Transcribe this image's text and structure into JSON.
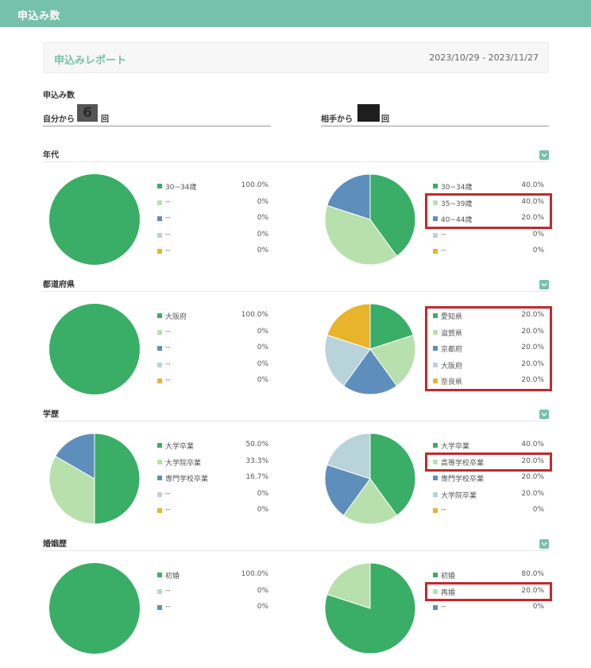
{
  "header": {
    "title": "申込み数"
  },
  "report": {
    "title": "申込みレポート",
    "date_range": "2023/10/29 - 2023/11/27"
  },
  "summary": {
    "label": "申込み数",
    "self_label": "自分から",
    "self_count": "6",
    "self_unit": "回",
    "partner_label": "相手から",
    "partner_count": "",
    "partner_unit": "回"
  },
  "colors": {
    "c1": "#3aae66",
    "c2": "#b8e0ad",
    "c3": "#5e8fbc",
    "c4": "#b8d3da",
    "c5": "#e8b42c",
    "accent": "#76c1aa",
    "highlight": "#c62828"
  },
  "categories": [
    {
      "title": "年代",
      "self": {
        "items": [
          {
            "label": "30~34歳",
            "value": "100.0%"
          },
          {
            "label": "--",
            "value": "0%"
          },
          {
            "label": "--",
            "value": "0%"
          },
          {
            "label": "--",
            "value": "0%"
          },
          {
            "label": "--",
            "value": "0%"
          }
        ]
      },
      "partner": {
        "items": [
          {
            "label": "30~34歳",
            "value": "40.0%"
          },
          {
            "label": "35~39歳",
            "value": "40.0%"
          },
          {
            "label": "40~44歳",
            "value": "20.0%"
          },
          {
            "label": "--",
            "value": "0%"
          },
          {
            "label": "--",
            "value": "0%"
          }
        ]
      }
    },
    {
      "title": "都道府県",
      "self": {
        "items": [
          {
            "label": "大阪府",
            "value": "100.0%"
          },
          {
            "label": "--",
            "value": "0%"
          },
          {
            "label": "--",
            "value": "0%"
          },
          {
            "label": "--",
            "value": "0%"
          },
          {
            "label": "--",
            "value": "0%"
          }
        ]
      },
      "partner": {
        "items": [
          {
            "label": "愛知県",
            "value": "20.0%"
          },
          {
            "label": "滋賀県",
            "value": "20.0%"
          },
          {
            "label": "京都府",
            "value": "20.0%"
          },
          {
            "label": "大阪府",
            "value": "20.0%"
          },
          {
            "label": "奈良県",
            "value": "20.0%"
          }
        ]
      }
    },
    {
      "title": "学歴",
      "self": {
        "items": [
          {
            "label": "大学卒業",
            "value": "50.0%"
          },
          {
            "label": "大学院卒業",
            "value": "33.3%"
          },
          {
            "label": "専門学校卒業",
            "value": "16.7%"
          },
          {
            "label": "--",
            "value": "0%"
          },
          {
            "label": "--",
            "value": "0%"
          }
        ]
      },
      "partner": {
        "items": [
          {
            "label": "大学卒業",
            "value": "40.0%"
          },
          {
            "label": "高等学校卒業",
            "value": "20.0%"
          },
          {
            "label": "専門学校卒業",
            "value": "20.0%"
          },
          {
            "label": "大学院卒業",
            "value": "20.0%"
          },
          {
            "label": "--",
            "value": "0%"
          }
        ]
      }
    },
    {
      "title": "婚姻歴",
      "self": {
        "items": [
          {
            "label": "初婚",
            "value": "100.0%"
          },
          {
            "label": "--",
            "value": "0%"
          },
          {
            "label": "--",
            "value": "0%"
          }
        ]
      },
      "partner": {
        "items": [
          {
            "label": "初婚",
            "value": "80.0%"
          },
          {
            "label": "再婚",
            "value": "20.0%"
          },
          {
            "label": "--",
            "value": "0%"
          }
        ]
      }
    }
  ],
  "chart_data": [
    {
      "type": "pie",
      "title": "年代 (自分から)",
      "labels": [
        "30~34歳"
      ],
      "values": [
        100.0
      ]
    },
    {
      "type": "pie",
      "title": "年代 (相手から)",
      "labels": [
        "30~34歳",
        "35~39歳",
        "40~44歳"
      ],
      "values": [
        40.0,
        40.0,
        20.0
      ]
    },
    {
      "type": "pie",
      "title": "都道府県 (自分から)",
      "labels": [
        "大阪府"
      ],
      "values": [
        100.0
      ]
    },
    {
      "type": "pie",
      "title": "都道府県 (相手から)",
      "labels": [
        "愛知県",
        "滋賀県",
        "京都府",
        "大阪府",
        "奈良県"
      ],
      "values": [
        20.0,
        20.0,
        20.0,
        20.0,
        20.0
      ]
    },
    {
      "type": "pie",
      "title": "学歴 (自分から)",
      "labels": [
        "大学卒業",
        "大学院卒業",
        "専門学校卒業"
      ],
      "values": [
        50.0,
        33.3,
        16.7
      ]
    },
    {
      "type": "pie",
      "title": "学歴 (相手から)",
      "labels": [
        "大学卒業",
        "高等学校卒業",
        "専門学校卒業",
        "大学院卒業"
      ],
      "values": [
        40.0,
        20.0,
        20.0,
        20.0
      ]
    },
    {
      "type": "pie",
      "title": "婚姻歴 (自分から)",
      "labels": [
        "初婚"
      ],
      "values": [
        100.0
      ]
    },
    {
      "type": "pie",
      "title": "婚姻歴 (相手から)",
      "labels": [
        "初婚",
        "再婚"
      ],
      "values": [
        80.0,
        20.0
      ]
    }
  ]
}
